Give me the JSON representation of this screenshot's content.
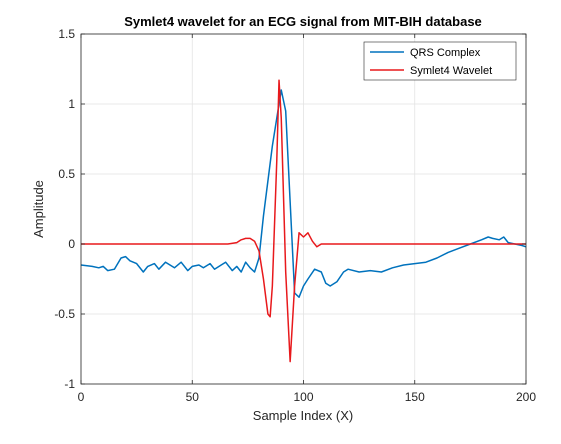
{
  "chart_data": {
    "type": "line",
    "title": "Symlet4 wavelet for an ECG signal from MIT-BIH database",
    "xlabel": "Sample Index (X)",
    "ylabel": "Amplitude",
    "xlim": [
      0,
      200
    ],
    "ylim": [
      -1,
      1.5
    ],
    "xticks": [
      0,
      50,
      100,
      150,
      200
    ],
    "yticks": [
      -1,
      -0.5,
      0,
      0.5,
      1,
      1.5
    ],
    "xtick_labels": [
      "0",
      "50",
      "100",
      "150",
      "200"
    ],
    "ytick_labels": [
      "-1",
      "-0.5",
      "0",
      "0.5",
      "1",
      "1.5"
    ],
    "grid": true,
    "legend_position": "top-right",
    "series": [
      {
        "name": "QRS Complex",
        "color": "#0072BD",
        "x": [
          0,
          5,
          8,
          10,
          12,
          15,
          18,
          20,
          22,
          25,
          28,
          30,
          33,
          35,
          38,
          40,
          42,
          45,
          48,
          50,
          53,
          55,
          58,
          60,
          63,
          65,
          68,
          70,
          72,
          74,
          76,
          78,
          80,
          82,
          84,
          86,
          88,
          90,
          92,
          94,
          96,
          98,
          100,
          102,
          105,
          108,
          110,
          112,
          115,
          118,
          120,
          125,
          130,
          135,
          140,
          145,
          150,
          155,
          160,
          165,
          170,
          175,
          180,
          183,
          185,
          188,
          190,
          192,
          195,
          198,
          200
        ],
        "y": [
          -0.15,
          -0.16,
          -0.17,
          -0.16,
          -0.19,
          -0.18,
          -0.1,
          -0.09,
          -0.12,
          -0.14,
          -0.2,
          -0.16,
          -0.14,
          -0.18,
          -0.13,
          -0.15,
          -0.17,
          -0.13,
          -0.19,
          -0.16,
          -0.15,
          -0.17,
          -0.14,
          -0.18,
          -0.15,
          -0.13,
          -0.19,
          -0.16,
          -0.2,
          -0.13,
          -0.17,
          -0.2,
          -0.1,
          0.2,
          0.45,
          0.7,
          0.9,
          1.1,
          0.95,
          0.3,
          -0.35,
          -0.38,
          -0.3,
          -0.25,
          -0.18,
          -0.2,
          -0.28,
          -0.3,
          -0.27,
          -0.2,
          -0.18,
          -0.2,
          -0.19,
          -0.2,
          -0.17,
          -0.15,
          -0.14,
          -0.13,
          -0.1,
          -0.06,
          -0.03,
          0.0,
          0.03,
          0.05,
          0.04,
          0.03,
          0.05,
          0.01,
          0.0,
          -0.01,
          -0.02
        ]
      },
      {
        "name": "Symlet4 Wavelet",
        "color": "#E8191C",
        "x": [
          0,
          10,
          20,
          30,
          40,
          50,
          60,
          66,
          70,
          72,
          74,
          76,
          78,
          80,
          82,
          84,
          85,
          86,
          88,
          89,
          90,
          92,
          94,
          96,
          98,
          100,
          102,
          104,
          106,
          108,
          110,
          120,
          130,
          150,
          170,
          190,
          200
        ],
        "y": [
          0,
          0,
          0,
          0,
          0,
          0,
          0,
          0,
          0.01,
          0.03,
          0.04,
          0.04,
          0.02,
          -0.05,
          -0.25,
          -0.5,
          -0.52,
          -0.3,
          0.6,
          1.17,
          0.9,
          -0.2,
          -0.84,
          -0.3,
          0.08,
          0.05,
          0.08,
          0.02,
          -0.02,
          0.0,
          0.0,
          0,
          0,
          0,
          0,
          0,
          0
        ]
      }
    ]
  }
}
